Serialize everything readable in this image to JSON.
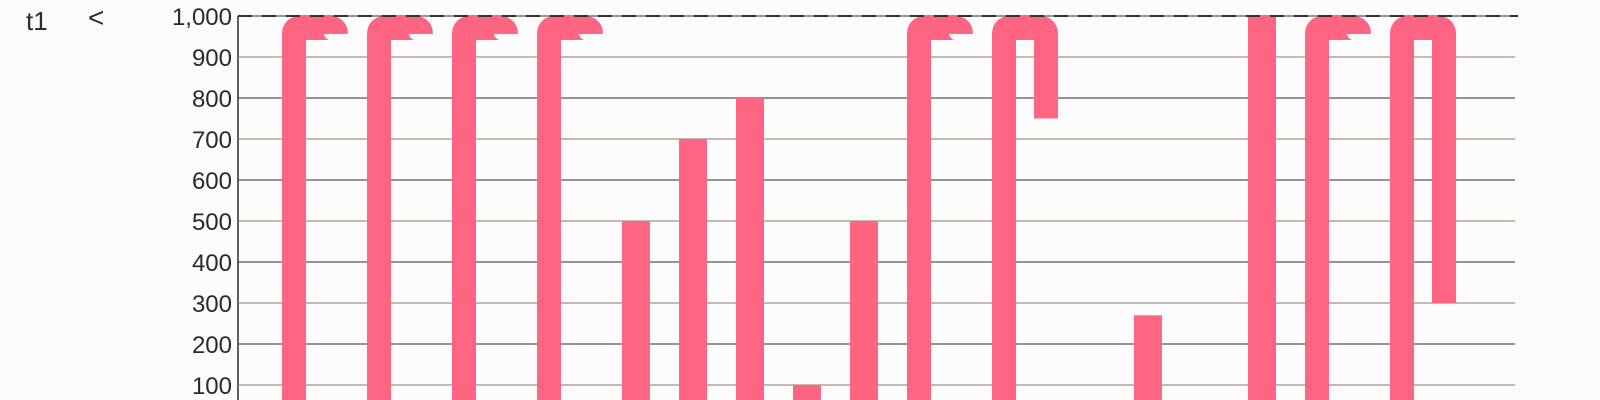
{
  "series_label": "t1",
  "back_arrow": "<",
  "chart_data": {
    "type": "bar",
    "title": "",
    "xlabel": "",
    "ylabel": "",
    "ylim": [
      0,
      1000
    ],
    "threshold": 1000,
    "y_ticks": [
      "100",
      "200",
      "300",
      "400",
      "500",
      "600",
      "700",
      "800",
      "900",
      "1,000"
    ],
    "bars": [
      {
        "start": 1000,
        "end": 1000,
        "loops": 1
      },
      {
        "start": 1000,
        "end": 1000,
        "loops": 1
      },
      {
        "start": 1000,
        "end": 1000,
        "loops": 1
      },
      {
        "start": 1000,
        "end": 1000,
        "loops": 1
      },
      {
        "value": 500
      },
      {
        "value": 700
      },
      {
        "value": 800
      },
      {
        "value": 100
      },
      {
        "value": 500
      },
      {
        "start": 1000,
        "end": 1000,
        "loops": 1
      },
      {
        "start": 1000,
        "end": 750,
        "loops": 1
      },
      {
        "value": 0
      },
      {
        "value": 270
      },
      {
        "value": 0
      },
      {
        "value": 1000
      },
      {
        "start": 1000,
        "end": 1000,
        "loops": 1
      },
      {
        "start": 1000,
        "end": 300,
        "loops": 1
      }
    ],
    "colors": {
      "bar": "#ff6482",
      "threshold": "#333333",
      "grid_dark": "#2d2d2d",
      "grid_light": "#8a7a5e"
    }
  }
}
